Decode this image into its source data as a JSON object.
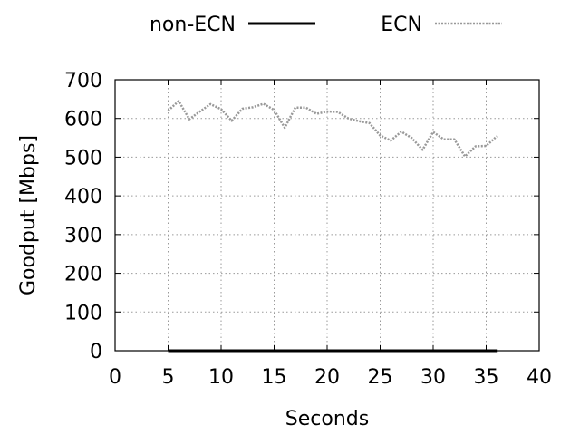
{
  "chart_data": {
    "type": "line",
    "title": "",
    "xlabel": "Seconds",
    "ylabel": "Goodput [Mbps]",
    "xlim": [
      0,
      40
    ],
    "ylim": [
      0,
      700
    ],
    "xticks": [
      0,
      5,
      10,
      15,
      20,
      25,
      30,
      35,
      40
    ],
    "yticks": [
      0,
      100,
      200,
      300,
      400,
      500,
      600,
      700
    ],
    "grid": true,
    "legend_position": "top",
    "series": [
      {
        "name": "non-ECN",
        "color": "#000000",
        "style": "solid",
        "x": [
          5,
          36
        ],
        "y": [
          0,
          0
        ]
      },
      {
        "name": "ECN",
        "color": "#999999",
        "style": "dotted",
        "x": [
          5,
          6,
          7,
          8,
          9,
          10,
          11,
          12,
          13,
          14,
          15,
          16,
          17,
          18,
          19,
          20,
          21,
          22,
          23,
          24,
          25,
          26,
          27,
          28,
          29,
          30,
          31,
          32,
          33,
          34,
          35,
          36
        ],
        "y": [
          620,
          645,
          598,
          618,
          637,
          624,
          594,
          625,
          629,
          638,
          622,
          576,
          628,
          628,
          612,
          618,
          617,
          600,
          593,
          588,
          556,
          543,
          566,
          549,
          519,
          565,
          546,
          546,
          502,
          528,
          529,
          554
        ]
      }
    ]
  }
}
